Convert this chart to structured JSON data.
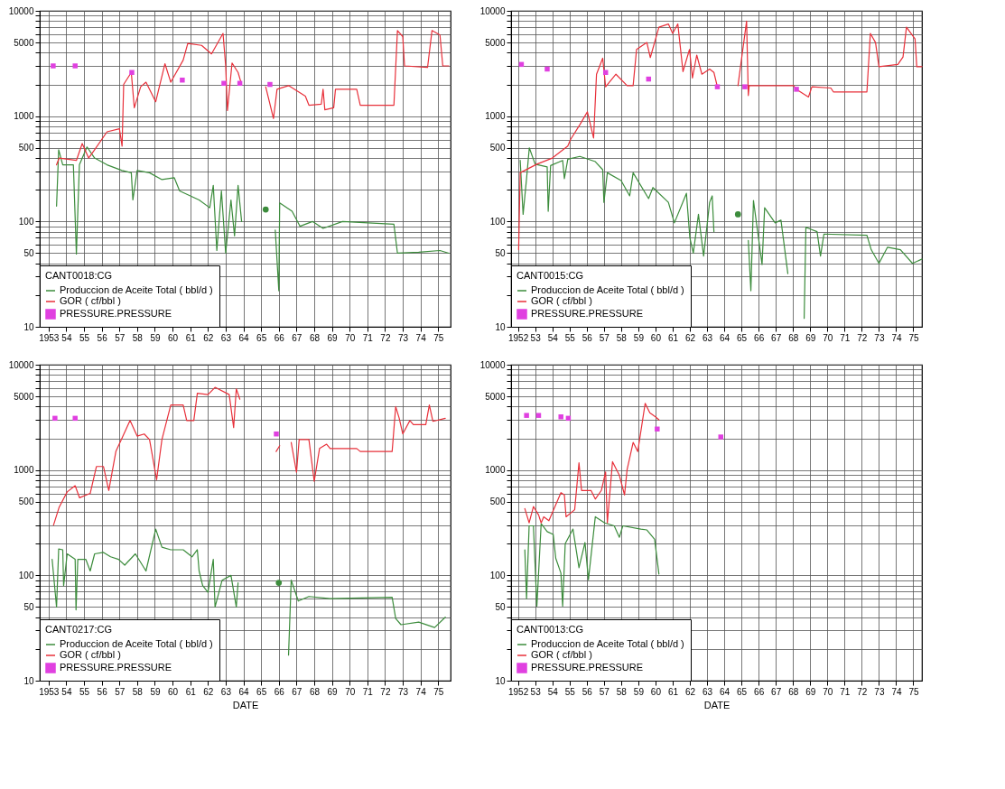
{
  "chart_data": [
    {
      "type": "line",
      "legend_title": "CANT0018:CG",
      "log": "y",
      "grid": true,
      "legend": "bottom left",
      "xlim": [
        1952.5,
        1975.7
      ],
      "xticks": [
        1953,
        {
          "value": 1954,
          "label": "54"
        },
        {
          "value": 1955,
          "label": "55"
        },
        {
          "value": 1956,
          "label": "56"
        },
        {
          "value": 1957,
          "label": "57"
        },
        {
          "value": 1958,
          "label": "58"
        },
        {
          "value": 1959,
          "label": "59"
        },
        {
          "value": 1960,
          "label": "60"
        },
        {
          "value": 1961,
          "label": "61"
        },
        {
          "value": 1962,
          "label": "62"
        },
        {
          "value": 1963,
          "label": "63"
        },
        {
          "value": 1964,
          "label": "64"
        },
        {
          "value": 1965,
          "label": "65"
        },
        {
          "value": 1966,
          "label": "66"
        },
        {
          "value": 1967,
          "label": "67"
        },
        {
          "value": 1968,
          "label": "68"
        },
        {
          "value": 1969,
          "label": "69"
        },
        {
          "value": 1970,
          "label": "70"
        },
        {
          "value": 1971,
          "label": "71"
        },
        {
          "value": 1972,
          "label": "72"
        },
        {
          "value": 1973,
          "label": "73"
        },
        {
          "value": 1974,
          "label": "74"
        },
        {
          "value": 1975,
          "label": "75"
        }
      ],
      "ylim": [
        10,
        10000
      ],
      "yticks": [
        10,
        {
          "value": 20,
          "label": null
        },
        {
          "value": 30,
          "label": null
        },
        {
          "value": 40,
          "label": null
        },
        50,
        {
          "value": 60,
          "label": null
        },
        {
          "value": 70,
          "label": null
        },
        {
          "value": 80,
          "label": null
        },
        {
          "value": 90,
          "label": null
        },
        100,
        {
          "value": 200,
          "label": null
        },
        {
          "value": 300,
          "label": null
        },
        {
          "value": 400,
          "label": null
        },
        500,
        {
          "value": 600,
          "label": null
        },
        {
          "value": 700,
          "label": null
        },
        {
          "value": 800,
          "label": null
        },
        {
          "value": 900,
          "label": null
        },
        1000,
        {
          "value": 2000,
          "label": null
        },
        {
          "value": 3000,
          "label": null
        },
        {
          "value": 4000,
          "label": null
        },
        5000,
        {
          "value": 6000,
          "label": null
        },
        {
          "value": 7000,
          "label": null
        },
        {
          "value": 8000,
          "label": null
        },
        {
          "value": 9000,
          "label": null
        },
        10000
      ],
      "series": [
        {
          "name": "Produccion de Aceite Total ( bbl/d )",
          "color": "#3c8c3c",
          "x": [
            1953.45,
            1953.57,
            1953.8,
            1954.4,
            1954.57,
            1954.74,
            1955.17,
            1955.6,
            1956.3,
            1957.15,
            1957.67,
            1957.76,
            1958.0,
            1958.7,
            1959.4,
            1960.1,
            1960.4,
            1961.5,
            1962.1,
            1962.3,
            1962.5,
            1962.76,
            1963.0,
            1963.3,
            1963.5,
            1963.7,
            1963.9,
            1965.5,
            1965.8,
            1966.0,
            1966.05,
            1966.75,
            1967.2,
            1967.9,
            1968.5,
            1969.6,
            1972.5,
            1972.7,
            1973.9,
            1975.1,
            1975.6
          ],
          "values": [
            140,
            480,
            345,
            345,
            49,
            345,
            510,
            400,
            345,
            305,
            290,
            160,
            305,
            290,
            250,
            260,
            195,
            160,
            135,
            220,
            53,
            195,
            50,
            160,
            73,
            220,
            100,
            null,
            83,
            22,
            150,
            125,
            90,
            100,
            86,
            100,
            94,
            50,
            51,
            53,
            50
          ]
        },
        {
          "name": "GOR ( cf/bbl )",
          "color": "#e8303a",
          "x": [
            1953.45,
            1953.6,
            1954.57,
            1954.9,
            1955.26,
            1955.6,
            1956.3,
            1957.0,
            1957.15,
            1957.24,
            1957.67,
            1957.84,
            1958.2,
            1958.5,
            1959.05,
            1959.57,
            1959.9,
            1960.6,
            1960.86,
            1961.64,
            1962.2,
            1962.85,
            1963.0,
            1963.1,
            1963.36,
            1963.7,
            1963.9,
            1964.5,
            1965.26,
            1965.7,
            1965.9,
            1966.55,
            1967.5,
            1967.7,
            1968.4,
            1968.5,
            1968.6,
            1969.1,
            1969.2,
            1970.4,
            1970.6,
            1972.5,
            1972.7,
            1973.0,
            1973.1,
            1974.4,
            1974.65,
            1975.1,
            1975.26,
            1975.6
          ],
          "values": [
            345,
            400,
            380,
            550,
            400,
            480,
            710,
            760,
            520,
            2000,
            2600,
            1200,
            1900,
            2100,
            1370,
            3150,
            2100,
            3400,
            4900,
            4700,
            3900,
            6100,
            3000,
            1130,
            3200,
            2600,
            2000,
            null,
            1900,
            950,
            1800,
            1950,
            1550,
            1270,
            1300,
            1800,
            1150,
            1200,
            1800,
            1800,
            1270,
            1270,
            6500,
            5700,
            3000,
            2900,
            6500,
            5900,
            3000,
            3000
          ]
        },
        {
          "name": "PRESSURE.PRESSURE",
          "type": "scatter",
          "marker": "square",
          "color": "#e040e0",
          "x": [
            1953.26,
            1954.5,
            1957.7,
            1960.55,
            1962.9,
            1963.8,
            1965.5
          ],
          "values": [
            3000,
            3000,
            2600,
            2200,
            2050,
            2050,
            2000
          ]
        },
        {
          "type": "scatter",
          "marker": "circle",
          "color": "#3c8c3c",
          "x": [
            1965.26
          ],
          "values": [
            130
          ]
        }
      ]
    },
    {
      "type": "line",
      "legend_title": "CANT0015:CG",
      "log": "y",
      "grid": true,
      "legend": "bottom left",
      "xlim": [
        1951.6,
        1975.5
      ],
      "xticks": [
        1952,
        {
          "value": 1953,
          "label": "53"
        },
        {
          "value": 1954,
          "label": "54"
        },
        {
          "value": 1955,
          "label": "55"
        },
        {
          "value": 1956,
          "label": "56"
        },
        {
          "value": 1957,
          "label": "57"
        },
        {
          "value": 1958,
          "label": "58"
        },
        {
          "value": 1959,
          "label": "59"
        },
        {
          "value": 1960,
          "label": "60"
        },
        {
          "value": 1961,
          "label": "61"
        },
        {
          "value": 1962,
          "label": "62"
        },
        {
          "value": 1963,
          "label": "63"
        },
        {
          "value": 1964,
          "label": "64"
        },
        {
          "value": 1965,
          "label": "65"
        },
        {
          "value": 1966,
          "label": "66"
        },
        {
          "value": 1967,
          "label": "67"
        },
        {
          "value": 1968,
          "label": "68"
        },
        {
          "value": 1969,
          "label": "69"
        },
        {
          "value": 1970,
          "label": "70"
        },
        {
          "value": 1971,
          "label": "71"
        },
        {
          "value": 1972,
          "label": "72"
        },
        {
          "value": 1973,
          "label": "73"
        },
        {
          "value": 1974,
          "label": "74"
        },
        {
          "value": 1975,
          "label": "75"
        }
      ],
      "ylim": [
        10,
        10000
      ],
      "yticks": [
        10,
        {
          "value": 20,
          "label": null
        },
        {
          "value": 30,
          "label": null
        },
        {
          "value": 40,
          "label": null
        },
        50,
        {
          "value": 60,
          "label": null
        },
        {
          "value": 70,
          "label": null
        },
        {
          "value": 80,
          "label": null
        },
        {
          "value": 90,
          "label": null
        },
        100,
        {
          "value": 200,
          "label": null
        },
        {
          "value": 300,
          "label": null
        },
        {
          "value": 400,
          "label": null
        },
        500,
        {
          "value": 600,
          "label": null
        },
        {
          "value": 700,
          "label": null
        },
        {
          "value": 800,
          "label": null
        },
        {
          "value": 900,
          "label": null
        },
        1000,
        {
          "value": 2000,
          "label": null
        },
        {
          "value": 3000,
          "label": null
        },
        {
          "value": 4000,
          "label": null
        },
        5000,
        {
          "value": 6000,
          "label": null
        },
        {
          "value": 7000,
          "label": null
        },
        {
          "value": 8000,
          "label": null
        },
        {
          "value": 9000,
          "label": null
        },
        10000
      ],
      "series": [
        {
          "name": "Produccion de Aceite Total ( bbl/d )",
          "color": "#3c8c3c",
          "x": [
            1952.13,
            1952.3,
            1952.5,
            1952.66,
            1953.0,
            1953.7,
            1953.76,
            1953.9,
            1954.6,
            1954.7,
            1954.9,
            1955.6,
            1956.5,
            1956.93,
            1957.0,
            1957.2,
            1958.0,
            1958.5,
            1958.7,
            1959.6,
            1959.85,
            1960.75,
            1961.1,
            1961.8,
            1962.0,
            1962.2,
            1962.5,
            1962.8,
            1963.15,
            1963.3,
            1963.4,
            1965.1,
            1965.4,
            1965.55,
            1965.7,
            1966.2,
            1966.35,
            1966.96,
            1967.3,
            1967.7,
            1968.2,
            1968.65,
            1968.75,
            1969.4,
            1969.6,
            1969.8,
            1972.3,
            1972.55,
            1973.0,
            1973.5,
            1974.25,
            1974.95,
            1975.5
          ],
          "values": [
            380,
            117,
            255,
            500,
            350,
            330,
            125,
            340,
            380,
            255,
            390,
            415,
            370,
            310,
            152,
            290,
            245,
            175,
            290,
            165,
            210,
            152,
            97,
            185,
            70,
            50,
            117,
            47,
            152,
            175,
            80,
            null,
            66,
            22,
            158,
            39,
            135,
            97,
            103,
            32,
            null,
            12,
            88,
            80,
            47,
            76,
            74,
            54,
            40,
            57,
            54,
            40,
            44
          ]
        },
        {
          "name": "GOR ( cf/bbl )",
          "color": "#e8303a",
          "x": [
            1952.04,
            1952.13,
            1953.1,
            1954.0,
            1954.9,
            1955.06,
            1955.6,
            1956.04,
            1956.4,
            1956.57,
            1956.93,
            1957.1,
            1957.7,
            1958.35,
            1958.7,
            1958.9,
            1959.5,
            1959.7,
            1960.2,
            1960.75,
            1961.0,
            1961.3,
            1961.6,
            1961.98,
            1962.15,
            1962.4,
            1962.7,
            1963.15,
            1963.4,
            1963.6,
            1964.2,
            1964.8,
            1965.3,
            1965.4,
            1965.45,
            1968.03,
            1968.2,
            1968.9,
            1969.1,
            1970.2,
            1970.35,
            1972.3,
            1972.5,
            1972.8,
            1973.0,
            1974.1,
            1974.4,
            1974.6,
            1975.1,
            1975.2,
            1975.5
          ],
          "values": [
            54,
            290,
            350,
            400,
            520,
            600,
            830,
            1100,
            620,
            2500,
            3550,
            1900,
            2500,
            1950,
            1950,
            4300,
            5000,
            3600,
            7000,
            7500,
            6100,
            7500,
            2650,
            4300,
            2300,
            3800,
            2500,
            2800,
            2600,
            1900,
            null,
            1950,
            8000,
            1570,
            1950,
            1950,
            1800,
            1520,
            1900,
            1850,
            1700,
            1700,
            6100,
            5000,
            2950,
            3100,
            3650,
            7000,
            5400,
            2950,
            2950
          ]
        },
        {
          "name": "PRESSURE.PRESSURE",
          "type": "scatter",
          "marker": "square",
          "color": "#e040e0",
          "x": [
            1952.2,
            1953.7,
            1957.1,
            1959.6,
            1963.6,
            1965.2,
            1968.2
          ],
          "values": [
            3100,
            2800,
            2600,
            2250,
            1900,
            1900,
            1800
          ]
        },
        {
          "type": "scatter",
          "marker": "circle",
          "color": "#3c8c3c",
          "x": [
            1964.8
          ],
          "values": [
            117
          ]
        }
      ]
    },
    {
      "type": "line",
      "legend_title": "CANT0217:CG",
      "xlabel": "DATE",
      "log": "y",
      "grid": true,
      "legend": "bottom left",
      "xlim": [
        1952.5,
        1975.7
      ],
      "xticks": [
        1953,
        {
          "value": 1954,
          "label": "54"
        },
        {
          "value": 1955,
          "label": "55"
        },
        {
          "value": 1956,
          "label": "56"
        },
        {
          "value": 1957,
          "label": "57"
        },
        {
          "value": 1958,
          "label": "58"
        },
        {
          "value": 1959,
          "label": "59"
        },
        {
          "value": 1960,
          "label": "60"
        },
        {
          "value": 1961,
          "label": "61"
        },
        {
          "value": 1962,
          "label": "62"
        },
        {
          "value": 1963,
          "label": "63"
        },
        {
          "value": 1964,
          "label": "64"
        },
        {
          "value": 1965,
          "label": "65"
        },
        {
          "value": 1966,
          "label": "66"
        },
        {
          "value": 1967,
          "label": "67"
        },
        {
          "value": 1968,
          "label": "68"
        },
        {
          "value": 1969,
          "label": "69"
        },
        {
          "value": 1970,
          "label": "70"
        },
        {
          "value": 1971,
          "label": "71"
        },
        {
          "value": 1972,
          "label": "72"
        },
        {
          "value": 1973,
          "label": "73"
        },
        {
          "value": 1974,
          "label": "74"
        },
        {
          "value": 1975,
          "label": "75"
        }
      ],
      "ylim": [
        10,
        10000
      ],
      "yticks": [
        10,
        {
          "value": 20,
          "label": null
        },
        {
          "value": 30,
          "label": null
        },
        {
          "value": 40,
          "label": null
        },
        50,
        {
          "value": 60,
          "label": null
        },
        {
          "value": 70,
          "label": null
        },
        {
          "value": 80,
          "label": null
        },
        {
          "value": 90,
          "label": null
        },
        100,
        {
          "value": 200,
          "label": null
        },
        {
          "value": 300,
          "label": null
        },
        {
          "value": 400,
          "label": null
        },
        500,
        {
          "value": 600,
          "label": null
        },
        {
          "value": 700,
          "label": null
        },
        {
          "value": 800,
          "label": null
        },
        {
          "value": 900,
          "label": null
        },
        1000,
        {
          "value": 2000,
          "label": null
        },
        {
          "value": 3000,
          "label": null
        },
        {
          "value": 4000,
          "label": null
        },
        5000,
        {
          "value": 6000,
          "label": null
        },
        {
          "value": 7000,
          "label": null
        },
        {
          "value": 8000,
          "label": null
        },
        {
          "value": 9000,
          "label": null
        },
        10000
      ],
      "series": [
        {
          "name": "Produccion de Aceite Total ( bbl/d )",
          "color": "#3c8c3c",
          "x": [
            1953.2,
            1953.45,
            1953.57,
            1953.8,
            1953.85,
            1954.05,
            1954.5,
            1954.55,
            1954.65,
            1955.1,
            1955.35,
            1955.6,
            1956.1,
            1956.5,
            1956.95,
            1957.3,
            1957.9,
            1958.5,
            1959.05,
            1959.4,
            1959.9,
            1960.6,
            1961.1,
            1961.4,
            1961.5,
            1961.7,
            1962.0,
            1962.3,
            1962.4,
            1962.8,
            1963.3,
            1963.6,
            1963.7,
            1966.3,
            1966.55,
            1966.7,
            1967.1,
            1967.7,
            1968.9,
            1972.4,
            1972.6,
            1972.9,
            1973.9,
            1974.8,
            1975.4
          ],
          "values": [
            142,
            50,
            178,
            175,
            80,
            160,
            142,
            47,
            142,
            142,
            110,
            160,
            165,
            150,
            142,
            125,
            160,
            110,
            275,
            185,
            175,
            175,
            150,
            175,
            110,
            80,
            69,
            142,
            50,
            90,
            100,
            50,
            85,
            null,
            17.5,
            90,
            57,
            63,
            60,
            62,
            39,
            34,
            36,
            32,
            40
          ]
        },
        {
          "name": "GOR ( cf/bbl )",
          "color": "#e8303a",
          "x": [
            1953.28,
            1953.6,
            1954.05,
            1954.5,
            1954.75,
            1955.35,
            1955.7,
            1956.1,
            1956.4,
            1956.8,
            1957.2,
            1957.6,
            1958.0,
            1958.4,
            1958.7,
            1959.1,
            1959.4,
            1959.9,
            1960.26,
            1960.6,
            1960.8,
            1961.2,
            1961.4,
            1962.0,
            1962.4,
            1963.2,
            1963.45,
            1963.6,
            1963.8,
            1964.8,
            1965.85,
            1966.05,
            1966.3,
            1966.7,
            1967.0,
            1967.15,
            1967.7,
            1968.0,
            1968.3,
            1968.7,
            1968.9,
            1970.4,
            1970.6,
            1972.4,
            1972.6,
            1972.8,
            1973.0,
            1973.4,
            1973.6,
            1974.3,
            1974.5,
            1974.7,
            1975.4
          ],
          "values": [
            300,
            445,
            620,
            710,
            545,
            600,
            1080,
            1080,
            640,
            1500,
            2100,
            2950,
            2100,
            2200,
            1950,
            810,
            1950,
            4150,
            4150,
            4150,
            2950,
            2950,
            5360,
            5200,
            6100,
            5200,
            2530,
            5900,
            4700,
            null,
            1500,
            1700,
            null,
            1830,
            950,
            1950,
            1950,
            780,
            1600,
            1760,
            1600,
            1600,
            1500,
            1500,
            4000,
            3100,
            2200,
            2950,
            2700,
            2700,
            4150,
            2900,
            3100
          ]
        },
        {
          "name": "PRESSURE.PRESSURE",
          "type": "scatter",
          "marker": "square",
          "color": "#e040e0",
          "x": [
            1953.36,
            1954.5,
            1965.86
          ],
          "values": [
            3100,
            3100,
            2200
          ]
        },
        {
          "type": "scatter",
          "marker": "circle",
          "color": "#3c8c3c",
          "x": [
            1966.0
          ],
          "values": [
            85
          ]
        }
      ]
    },
    {
      "type": "line",
      "legend_title": "CANT0013:CG",
      "xlabel": "DATE",
      "log": "y",
      "grid": true,
      "legend": "bottom left",
      "xlim": [
        1951.6,
        1975.5
      ],
      "xticks": [
        1952,
        {
          "value": 1953,
          "label": "53"
        },
        {
          "value": 1954,
          "label": "54"
        },
        {
          "value": 1955,
          "label": "55"
        },
        {
          "value": 1956,
          "label": "56"
        },
        {
          "value": 1957,
          "label": "57"
        },
        {
          "value": 1958,
          "label": "58"
        },
        {
          "value": 1959,
          "label": "59"
        },
        {
          "value": 1960,
          "label": "60"
        },
        {
          "value": 1961,
          "label": "61"
        },
        {
          "value": 1962,
          "label": "62"
        },
        {
          "value": 1963,
          "label": "63"
        },
        {
          "value": 1964,
          "label": "64"
        },
        {
          "value": 1965,
          "label": "65"
        },
        {
          "value": 1966,
          "label": "66"
        },
        {
          "value": 1967,
          "label": "67"
        },
        {
          "value": 1968,
          "label": "68"
        },
        {
          "value": 1969,
          "label": "69"
        },
        {
          "value": 1970,
          "label": "70"
        },
        {
          "value": 1971,
          "label": "71"
        },
        {
          "value": 1972,
          "label": "72"
        },
        {
          "value": 1973,
          "label": "73"
        },
        {
          "value": 1974,
          "label": "74"
        },
        {
          "value": 1975,
          "label": "75"
        }
      ],
      "ylim": [
        10,
        10000
      ],
      "yticks": [
        10,
        {
          "value": 20,
          "label": null
        },
        {
          "value": 30,
          "label": null
        },
        {
          "value": 40,
          "label": null
        },
        50,
        {
          "value": 60,
          "label": null
        },
        {
          "value": 70,
          "label": null
        },
        {
          "value": 80,
          "label": null
        },
        {
          "value": 90,
          "label": null
        },
        100,
        {
          "value": 200,
          "label": null
        },
        {
          "value": 300,
          "label": null
        },
        {
          "value": 400,
          "label": null
        },
        500,
        {
          "value": 600,
          "label": null
        },
        {
          "value": 700,
          "label": null
        },
        {
          "value": 800,
          "label": null
        },
        {
          "value": 900,
          "label": null
        },
        1000,
        {
          "value": 2000,
          "label": null
        },
        {
          "value": 3000,
          "label": null
        },
        {
          "value": 4000,
          "label": null
        },
        5000,
        {
          "value": 6000,
          "label": null
        },
        {
          "value": 7000,
          "label": null
        },
        {
          "value": 8000,
          "label": null
        },
        {
          "value": 9000,
          "label": null
        },
        10000
      ],
      "series": [
        {
          "name": "Produccion de Aceite Total ( bbl/d )",
          "color": "#3c8c3c",
          "x": [
            1952.4,
            1952.5,
            1952.65,
            1952.9,
            1953.1,
            1953.35,
            1953.7,
            1954.05,
            1954.2,
            1954.5,
            1954.6,
            1954.75,
            1955.2,
            1955.55,
            1955.9,
            1956.1,
            1956.5,
            1957.05,
            1957.6,
            1957.9,
            1958.1,
            1959.15,
            1959.5,
            1959.95,
            1960.2
          ],
          "values": [
            175,
            60,
            295,
            295,
            51,
            310,
            260,
            245,
            145,
            105,
            51,
            200,
            275,
            118,
            205,
            91,
            360,
            315,
            295,
            230,
            295,
            275,
            270,
            220,
            103
          ]
        },
        {
          "name": "GOR ( cf/bbl )",
          "color": "#e8303a",
          "x": [
            1952.4,
            1952.65,
            1952.9,
            1953.2,
            1953.35,
            1953.5,
            1953.8,
            1954.5,
            1954.7,
            1954.8,
            1955.3,
            1955.55,
            1955.7,
            1956.25,
            1956.5,
            1956.85,
            1957.1,
            1957.2,
            1957.5,
            1957.9,
            1958.2,
            1958.35,
            1958.7,
            1958.97,
            1959.4,
            1959.67,
            1960.0,
            1960.2
          ],
          "values": [
            430,
            315,
            450,
            375,
            315,
            360,
            330,
            610,
            580,
            360,
            420,
            1170,
            640,
            640,
            530,
            640,
            960,
            315,
            1200,
            890,
            580,
            1010,
            1830,
            1500,
            4300,
            3500,
            3200,
            3000
          ]
        },
        {
          "name": "PRESSURE.PRESSURE",
          "type": "scatter",
          "marker": "square",
          "color": "#e040e0",
          "x": [
            1952.5,
            1953.2,
            1954.5,
            1954.93,
            1960.1,
            1963.8
          ],
          "values": [
            3300,
            3300,
            3200,
            3100,
            2450,
            2060
          ]
        }
      ]
    }
  ]
}
